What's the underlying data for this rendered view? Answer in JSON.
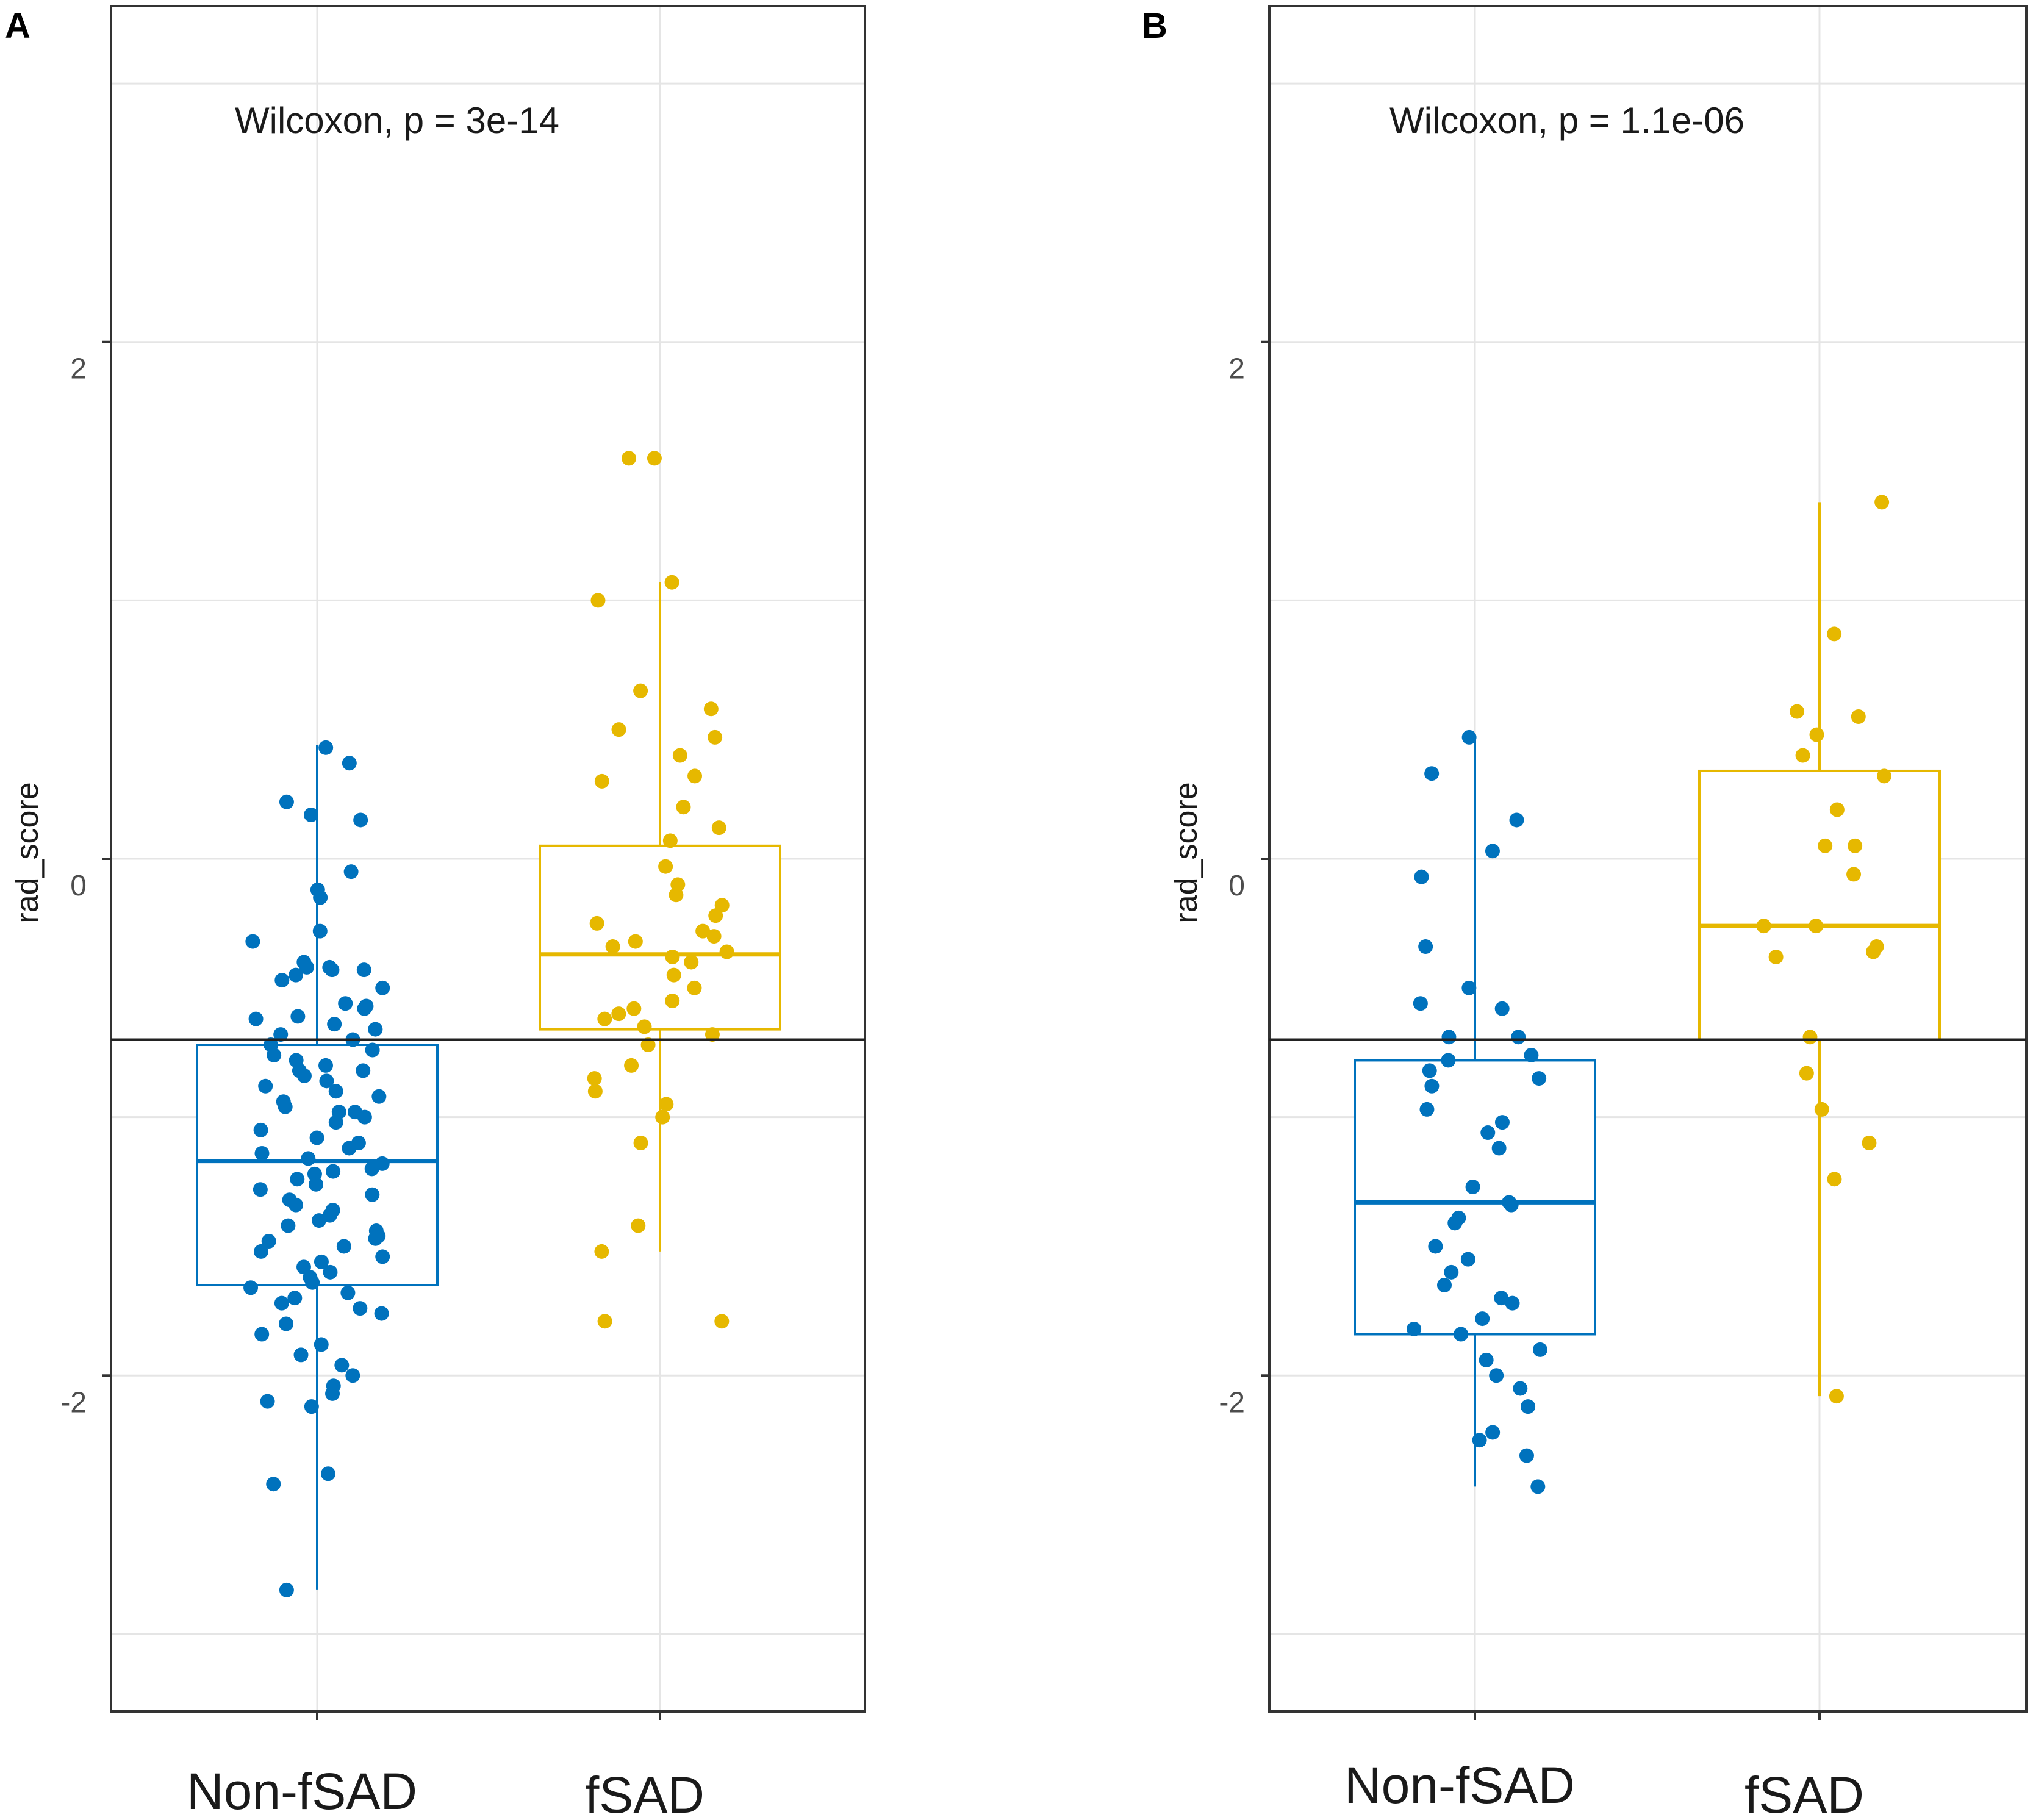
{
  "chart_data": [
    {
      "type": "boxplot",
      "panel": "A",
      "annotation": "Wilcoxon, p = 3e-14",
      "ylabel": "rad_score",
      "xlabel": "",
      "categories": [
        "Non-fSAD",
        "fSAD"
      ],
      "yticks": [
        -2,
        0,
        2
      ],
      "ylim": [
        -3.3,
        3.3
      ],
      "reference_line": -0.7,
      "colors": {
        "Non-fSAD": "#0072BD",
        "fSAD": "#E6B800"
      },
      "boxes": [
        {
          "category": "Non-fSAD",
          "q1": -1.65,
          "median": -1.17,
          "q3": -0.72,
          "whisker_low": -2.83,
          "whisker_high": 0.44
        },
        {
          "category": "fSAD",
          "q1": -0.66,
          "median": -0.37,
          "q3": 0.05,
          "whisker_low": -1.52,
          "whisker_high": 1.07
        }
      ],
      "series": [
        {
          "name": "Non-fSAD",
          "values": [
            0.37,
            0.43,
            0.17,
            0.22,
            0.15,
            -0.05,
            -0.12,
            -0.15,
            -0.28,
            -0.32,
            -0.42,
            -0.43,
            -0.4,
            -0.43,
            -0.45,
            -0.42,
            -0.47,
            -0.5,
            -0.56,
            -0.57,
            -0.58,
            -0.62,
            -0.64,
            -0.66,
            -0.68,
            -0.7,
            -0.72,
            -0.74,
            -0.76,
            -0.78,
            -0.8,
            -0.82,
            -0.84,
            -0.86,
            -0.88,
            -0.9,
            -0.92,
            -0.94,
            -0.96,
            -0.98,
            -1.0,
            -1.02,
            -1.05,
            -1.08,
            -1.1,
            -1.12,
            -1.14,
            -1.16,
            -1.18,
            -1.2,
            -1.22,
            -1.24,
            -1.26,
            -1.28,
            -1.3,
            -1.32,
            -1.34,
            -1.36,
            -1.38,
            -1.4,
            -1.42,
            -1.44,
            -1.46,
            -1.48,
            -1.5,
            -1.52,
            -1.54,
            -1.56,
            -1.58,
            -1.6,
            -1.62,
            -1.64,
            -1.66,
            -1.68,
            -1.7,
            -1.72,
            -1.74,
            -1.76,
            -1.8,
            -1.84,
            -1.88,
            -1.92,
            -1.96,
            -2.0,
            -2.04,
            -2.07,
            -2.1,
            -2.12,
            -2.38,
            -2.42,
            -2.83,
            -1.47,
            -1.21,
            -0.98,
            -0.82,
            -0.61
          ]
        },
        {
          "name": "fSAD",
          "values": [
            1.55,
            1.55,
            1.07,
            1.0,
            0.65,
            0.58,
            0.5,
            0.47,
            0.4,
            0.32,
            0.3,
            0.2,
            0.12,
            0.07,
            -0.03,
            -0.1,
            -0.14,
            -0.18,
            -0.22,
            -0.25,
            -0.28,
            -0.3,
            -0.32,
            -0.34,
            -0.36,
            -0.38,
            -0.4,
            -0.45,
            -0.5,
            -0.55,
            -0.58,
            -0.6,
            -0.62,
            -0.65,
            -0.68,
            -0.72,
            -0.8,
            -0.85,
            -0.9,
            -0.95,
            -1.0,
            -1.1,
            -1.42,
            -1.52,
            -1.79,
            -1.79
          ]
        }
      ]
    },
    {
      "type": "boxplot",
      "panel": "B",
      "annotation": "Wilcoxon, p = 1.1e-06",
      "ylabel": "rad_score",
      "xlabel": "",
      "categories": [
        "Non-fSAD",
        "fSAD"
      ],
      "yticks": [
        -2,
        0,
        2
      ],
      "ylim": [
        -3.3,
        3.3
      ],
      "reference_line": -0.7,
      "colors": {
        "Non-fSAD": "#0072BD",
        "fSAD": "#E6B800"
      },
      "boxes": [
        {
          "category": "Non-fSAD",
          "q1": -1.84,
          "median": -1.33,
          "q3": -0.78,
          "whisker_low": -2.43,
          "whisker_high": 0.47
        },
        {
          "category": "fSAD",
          "q1": -0.7,
          "median": -0.26,
          "q3": 0.34,
          "whisker_low": -2.08,
          "whisker_high": 1.38
        }
      ],
      "series": [
        {
          "name": "Non-fSAD",
          "values": [
            0.47,
            0.33,
            0.15,
            0.03,
            -0.07,
            -0.34,
            -0.5,
            -0.56,
            -0.58,
            -0.69,
            -0.69,
            -0.76,
            -0.78,
            -0.82,
            -0.85,
            -0.88,
            -0.97,
            -1.02,
            -1.06,
            -1.12,
            -1.27,
            -1.33,
            -1.34,
            -1.39,
            -1.41,
            -1.5,
            -1.55,
            -1.6,
            -1.65,
            -1.7,
            -1.72,
            -1.78,
            -1.82,
            -1.84,
            -1.9,
            -1.94,
            -2.0,
            -2.05,
            -2.12,
            -2.22,
            -2.25,
            -2.31,
            -2.43
          ]
        },
        {
          "name": "fSAD",
          "values": [
            1.38,
            0.87,
            0.57,
            0.55,
            0.48,
            0.4,
            0.32,
            0.19,
            0.05,
            0.05,
            -0.06,
            -0.26,
            -0.26,
            -0.34,
            -0.36,
            -0.38,
            -0.69,
            -0.83,
            -0.97,
            -1.1,
            -1.24,
            -2.08
          ]
        }
      ]
    }
  ]
}
